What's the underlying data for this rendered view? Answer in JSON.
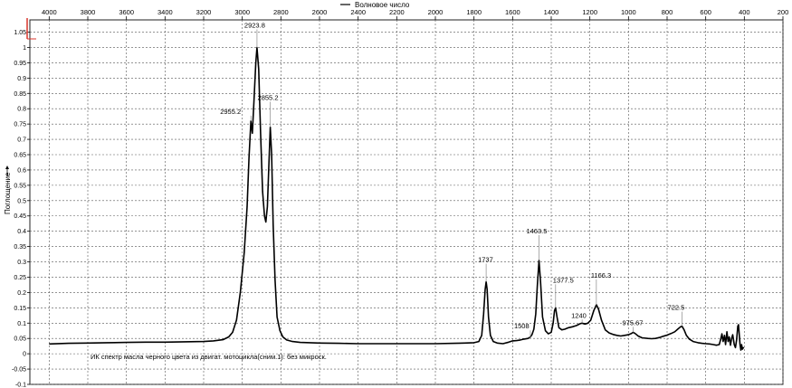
{
  "chart_data": {
    "type": "line",
    "xlabel": "Волновое число",
    "ylabel": "Поглощение",
    "series_name": "ИК спектр масла черного цвета из двигат. мотоцикла(сним.1): без микроск.",
    "x_reversed": true,
    "xlim": [
      4100,
      200
    ],
    "ylim": [
      -0.1,
      1.09
    ],
    "x_ticks": [
      4000,
      3800,
      3600,
      3400,
      3200,
      3000,
      2800,
      2600,
      2400,
      2200,
      2000,
      1800,
      1600,
      1400,
      1200,
      1000,
      800,
      600,
      400,
      200
    ],
    "y_ticks": [
      -0.1,
      -0.05,
      0,
      0.05,
      0.1,
      0.15,
      0.2,
      0.25,
      0.3,
      0.35,
      0.4,
      0.45,
      0.5,
      0.55,
      0.6,
      0.65,
      0.7,
      0.75,
      0.8,
      0.85,
      0.9,
      0.95,
      1,
      1.05
    ],
    "grid": true,
    "legend": "top-center",
    "peak_labels": [
      {
        "x": 2923.8,
        "y": 1.0,
        "label": "2923.8"
      },
      {
        "x": 2955.2,
        "y": 0.76,
        "label": "2955.2"
      },
      {
        "x": 2855.2,
        "y": 0.74,
        "label": "2855.2"
      },
      {
        "x": 1737,
        "y": 0.235,
        "label": "1737"
      },
      {
        "x": 1463.5,
        "y": 0.305,
        "label": "1463.5"
      },
      {
        "x": 1508,
        "y": 0.05,
        "label": "1508"
      },
      {
        "x": 1377.5,
        "y": 0.15,
        "label": "1377.5"
      },
      {
        "x": 1240,
        "y": 0.1,
        "label": "1240"
      },
      {
        "x": 1166.3,
        "y": 0.16,
        "label": "1166.3"
      },
      {
        "x": 975.67,
        "y": 0.07,
        "label": "975.67"
      },
      {
        "x": 722.5,
        "y": 0.09,
        "label": "722.5"
      }
    ],
    "spectrum": [
      [
        4000,
        0.032
      ],
      [
        3900,
        0.034
      ],
      [
        3800,
        0.035
      ],
      [
        3700,
        0.036
      ],
      [
        3600,
        0.037
      ],
      [
        3500,
        0.038
      ],
      [
        3400,
        0.038
      ],
      [
        3300,
        0.039
      ],
      [
        3200,
        0.04
      ],
      [
        3150,
        0.042
      ],
      [
        3100,
        0.046
      ],
      [
        3070,
        0.055
      ],
      [
        3050,
        0.07
      ],
      [
        3030,
        0.11
      ],
      [
        3010,
        0.2
      ],
      [
        2990,
        0.33
      ],
      [
        2975,
        0.48
      ],
      [
        2965,
        0.64
      ],
      [
        2955.2,
        0.76
      ],
      [
        2948,
        0.72
      ],
      [
        2940,
        0.82
      ],
      [
        2930,
        0.95
      ],
      [
        2923.8,
        1.0
      ],
      [
        2915,
        0.93
      ],
      [
        2905,
        0.72
      ],
      [
        2895,
        0.53
      ],
      [
        2885,
        0.45
      ],
      [
        2878,
        0.43
      ],
      [
        2870,
        0.48
      ],
      [
        2862,
        0.62
      ],
      [
        2855.2,
        0.74
      ],
      [
        2848,
        0.65
      ],
      [
        2840,
        0.42
      ],
      [
        2830,
        0.24
      ],
      [
        2820,
        0.12
      ],
      [
        2805,
        0.075
      ],
      [
        2790,
        0.055
      ],
      [
        2770,
        0.045
      ],
      [
        2740,
        0.04
      ],
      [
        2700,
        0.037
      ],
      [
        2600,
        0.035
      ],
      [
        2500,
        0.034
      ],
      [
        2400,
        0.033
      ],
      [
        2300,
        0.033
      ],
      [
        2200,
        0.033
      ],
      [
        2100,
        0.033
      ],
      [
        2000,
        0.033
      ],
      [
        1900,
        0.034
      ],
      [
        1850,
        0.035
      ],
      [
        1800,
        0.036
      ],
      [
        1775,
        0.04
      ],
      [
        1760,
        0.06
      ],
      [
        1750,
        0.13
      ],
      [
        1742,
        0.21
      ],
      [
        1737,
        0.235
      ],
      [
        1732,
        0.21
      ],
      [
        1725,
        0.12
      ],
      [
        1715,
        0.06
      ],
      [
        1700,
        0.04
      ],
      [
        1680,
        0.035
      ],
      [
        1650,
        0.033
      ],
      [
        1620,
        0.038
      ],
      [
        1600,
        0.042
      ],
      [
        1580,
        0.043
      ],
      [
        1560,
        0.045
      ],
      [
        1540,
        0.048
      ],
      [
        1520,
        0.05
      ],
      [
        1508,
        0.055
      ],
      [
        1500,
        0.062
      ],
      [
        1490,
        0.08
      ],
      [
        1480,
        0.13
      ],
      [
        1472,
        0.22
      ],
      [
        1463.5,
        0.305
      ],
      [
        1455,
        0.23
      ],
      [
        1445,
        0.12
      ],
      [
        1430,
        0.075
      ],
      [
        1415,
        0.065
      ],
      [
        1400,
        0.07
      ],
      [
        1390,
        0.1
      ],
      [
        1383,
        0.14
      ],
      [
        1377.5,
        0.15
      ],
      [
        1370,
        0.12
      ],
      [
        1360,
        0.085
      ],
      [
        1345,
        0.078
      ],
      [
        1330,
        0.08
      ],
      [
        1310,
        0.085
      ],
      [
        1290,
        0.088
      ],
      [
        1270,
        0.092
      ],
      [
        1250,
        0.098
      ],
      [
        1240,
        0.1
      ],
      [
        1225,
        0.097
      ],
      [
        1210,
        0.1
      ],
      [
        1195,
        0.11
      ],
      [
        1180,
        0.14
      ],
      [
        1166.3,
        0.16
      ],
      [
        1155,
        0.145
      ],
      [
        1140,
        0.11
      ],
      [
        1120,
        0.078
      ],
      [
        1100,
        0.068
      ],
      [
        1080,
        0.063
      ],
      [
        1060,
        0.06
      ],
      [
        1040,
        0.058
      ],
      [
        1020,
        0.06
      ],
      [
        1000,
        0.062
      ],
      [
        985,
        0.066
      ],
      [
        975.67,
        0.07
      ],
      [
        965,
        0.066
      ],
      [
        950,
        0.058
      ],
      [
        930,
        0.052
      ],
      [
        900,
        0.05
      ],
      [
        880,
        0.049
      ],
      [
        860,
        0.05
      ],
      [
        840,
        0.053
      ],
      [
        820,
        0.057
      ],
      [
        800,
        0.061
      ],
      [
        780,
        0.066
      ],
      [
        760,
        0.072
      ],
      [
        745,
        0.08
      ],
      [
        730,
        0.088
      ],
      [
        722.5,
        0.09
      ],
      [
        712,
        0.078
      ],
      [
        700,
        0.06
      ],
      [
        685,
        0.048
      ],
      [
        665,
        0.04
      ],
      [
        640,
        0.036
      ],
      [
        620,
        0.034
      ],
      [
        600,
        0.033
      ],
      [
        580,
        0.032
      ],
      [
        560,
        0.03
      ],
      [
        545,
        0.028
      ],
      [
        530,
        0.03
      ],
      [
        522,
        0.048
      ],
      [
        516,
        0.065
      ],
      [
        510,
        0.04
      ],
      [
        503,
        0.06
      ],
      [
        497,
        0.03
      ],
      [
        490,
        0.072
      ],
      [
        484,
        0.04
      ],
      [
        478,
        0.055
      ],
      [
        472,
        0.028
      ],
      [
        466,
        0.05
      ],
      [
        460,
        0.062
      ],
      [
        452,
        0.03
      ],
      [
        446,
        0.02
      ],
      [
        440,
        0.045
      ],
      [
        434,
        0.09
      ],
      [
        430,
        0.095
      ],
      [
        426,
        0.06
      ],
      [
        422,
        0.03
      ],
      [
        418,
        0.012
      ],
      [
        414,
        0.03
      ],
      [
        410,
        0.015
      ],
      [
        406,
        0.02
      ],
      [
        402,
        0.018
      ]
    ]
  }
}
